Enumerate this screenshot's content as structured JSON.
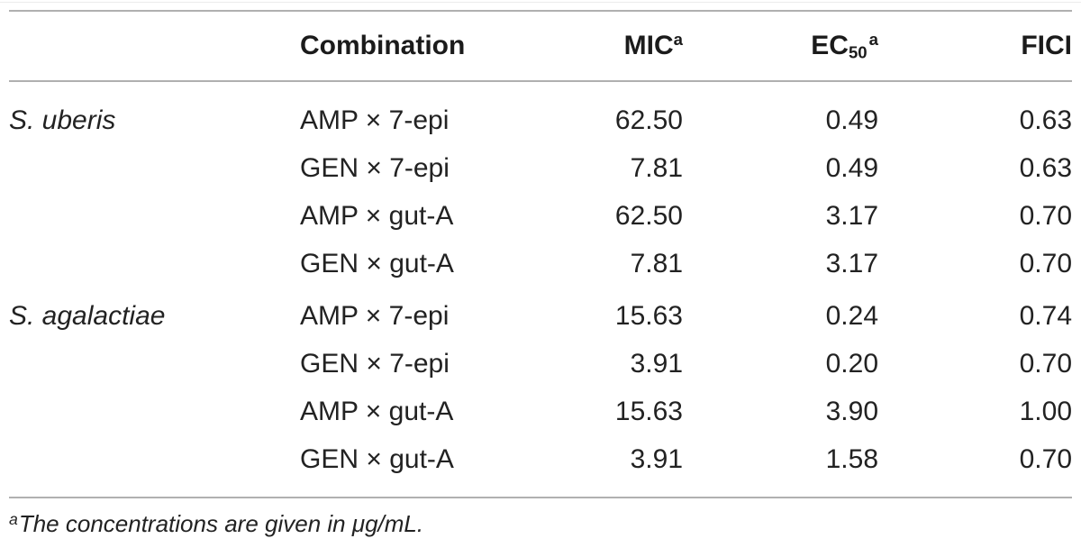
{
  "table": {
    "header": {
      "species": "",
      "combination": "Combination",
      "mic": "MIC",
      "mic_sup": "a",
      "ec": "EC",
      "ec_sub": "50",
      "ec_sup": "a",
      "fici": "FICI"
    },
    "rows": [
      {
        "species": "S. uberis",
        "combination": "AMP × 7-epi",
        "mic": "62.50",
        "ec50": "0.49",
        "fici": "0.63"
      },
      {
        "species": "",
        "combination": "GEN × 7-epi",
        "mic": "7.81",
        "ec50": "0.49",
        "fici": "0.63"
      },
      {
        "species": "",
        "combination": "AMP × gut-A",
        "mic": "62.50",
        "ec50": "3.17",
        "fici": "0.70"
      },
      {
        "species": "",
        "combination": "GEN × gut-A",
        "mic": "7.81",
        "ec50": "3.17",
        "fici": "0.70"
      },
      {
        "species": "S. agalactiae",
        "combination": "AMP × 7-epi",
        "mic": "15.63",
        "ec50": "0.24",
        "fici": "0.74"
      },
      {
        "species": "",
        "combination": "GEN × 7-epi",
        "mic": "3.91",
        "ec50": "0.20",
        "fici": "0.70"
      },
      {
        "species": "",
        "combination": "AMP × gut-A",
        "mic": "15.63",
        "ec50": "3.90",
        "fici": "1.00"
      },
      {
        "species": "",
        "combination": "GEN × gut-A",
        "mic": "3.91",
        "ec50": "1.58",
        "fici": "0.70"
      }
    ],
    "footnote": {
      "marker": "a",
      "text": "The concentrations are given in μg/mL."
    },
    "colors": {
      "rule": "#b0b0b0",
      "text": "#222222"
    }
  }
}
